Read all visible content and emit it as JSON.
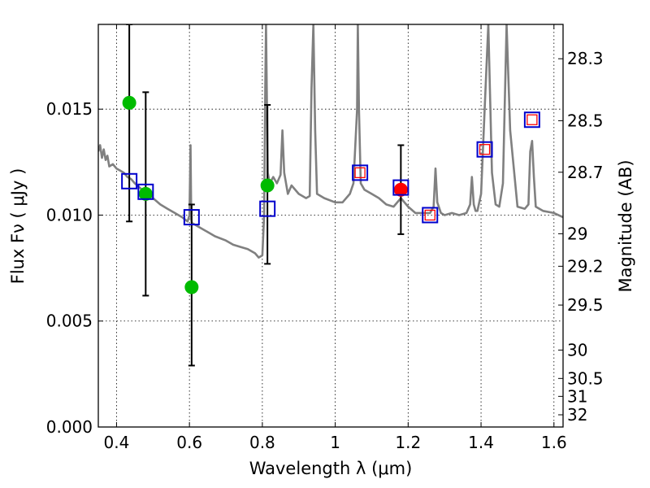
{
  "chart_data": {
    "type": "scatter",
    "title": "",
    "xlabel": "Wavelength  λ (μm)",
    "ylabel": "Flux  Fν  ( μJy )",
    "ylabel_right": "Magnitude (AB)",
    "xlim": [
      0.35,
      1.625
    ],
    "ylim": [
      0.0,
      0.019
    ],
    "grid": true,
    "x_ticks": [
      {
        "value": 0.4,
        "label": "0.4"
      },
      {
        "value": 0.6,
        "label": "0.6"
      },
      {
        "value": 0.8,
        "label": "0.8"
      },
      {
        "value": 1.0,
        "label": "1"
      },
      {
        "value": 1.2,
        "label": "1.2"
      },
      {
        "value": 1.4,
        "label": "1.4"
      },
      {
        "value": 1.6,
        "label": "1.6"
      }
    ],
    "y_ticks": [
      {
        "value": 0.0,
        "label": "0.000"
      },
      {
        "value": 0.005,
        "label": "0.005"
      },
      {
        "value": 0.01,
        "label": "0.010"
      },
      {
        "value": 0.015,
        "label": "0.015"
      }
    ],
    "mag_ticks": [
      {
        "value": 28.3,
        "label": "28.3"
      },
      {
        "value": 28.5,
        "label": "28.5"
      },
      {
        "value": 28.7,
        "label": "28.7"
      },
      {
        "value": 29.0,
        "label": "29"
      },
      {
        "value": 29.2,
        "label": "29.2"
      },
      {
        "value": 29.5,
        "label": "29.5"
      },
      {
        "value": 30.0,
        "label": "30"
      },
      {
        "value": 30.5,
        "label": "30.5"
      },
      {
        "value": 31.0,
        "label": "31"
      },
      {
        "value": 32.0,
        "label": "32"
      }
    ],
    "colors": {
      "model": "#808080",
      "detections": "#00bb00",
      "highlight": "#ff0000",
      "model_flux_box": "#0000cc",
      "model_flux_inner": "#ff0000",
      "errorbar": "#000000",
      "grid": "#000000"
    },
    "series": [
      {
        "name": "model SED",
        "kind": "line",
        "x": [
          0.35,
          0.355,
          0.36,
          0.365,
          0.37,
          0.375,
          0.38,
          0.39,
          0.4,
          0.41,
          0.42,
          0.43,
          0.44,
          0.45,
          0.47,
          0.49,
          0.5,
          0.52,
          0.54,
          0.56,
          0.58,
          0.595,
          0.6,
          0.603,
          0.605,
          0.607,
          0.61,
          0.63,
          0.65,
          0.67,
          0.7,
          0.72,
          0.74,
          0.76,
          0.78,
          0.79,
          0.8,
          0.805,
          0.808,
          0.81,
          0.812,
          0.815,
          0.82,
          0.83,
          0.84,
          0.85,
          0.855,
          0.86,
          0.87,
          0.88,
          0.9,
          0.92,
          0.93,
          0.935,
          0.94,
          0.945,
          0.95,
          0.97,
          1.0,
          1.02,
          1.04,
          1.05,
          1.06,
          1.062,
          1.065,
          1.07,
          1.08,
          1.1,
          1.12,
          1.14,
          1.16,
          1.18,
          1.2,
          1.22,
          1.24,
          1.26,
          1.27,
          1.275,
          1.28,
          1.29,
          1.3,
          1.32,
          1.34,
          1.36,
          1.37,
          1.375,
          1.38,
          1.385,
          1.39,
          1.4,
          1.41,
          1.42,
          1.43,
          1.44,
          1.45,
          1.46,
          1.47,
          1.48,
          1.5,
          1.52,
          1.53,
          1.535,
          1.54,
          1.545,
          1.55,
          1.57,
          1.6,
          1.625
        ],
        "y": [
          0.013,
          0.0133,
          0.0127,
          0.0131,
          0.0126,
          0.0128,
          0.0123,
          0.0124,
          0.0122,
          0.0121,
          0.012,
          0.0118,
          0.0117,
          0.0115,
          0.0112,
          0.011,
          0.0108,
          0.0105,
          0.0103,
          0.0101,
          0.0099,
          0.0097,
          0.01,
          0.0133,
          0.0098,
          0.0096,
          0.0096,
          0.0094,
          0.0092,
          0.009,
          0.0088,
          0.0086,
          0.0085,
          0.0084,
          0.0082,
          0.008,
          0.0081,
          0.01,
          0.016,
          0.019,
          0.016,
          0.012,
          0.0115,
          0.0118,
          0.0115,
          0.0119,
          0.014,
          0.012,
          0.011,
          0.0114,
          0.011,
          0.0108,
          0.0109,
          0.016,
          0.019,
          0.014,
          0.011,
          0.0108,
          0.0106,
          0.0106,
          0.011,
          0.0115,
          0.015,
          0.019,
          0.015,
          0.0115,
          0.0112,
          0.011,
          0.0108,
          0.0105,
          0.0104,
          0.0108,
          0.0104,
          0.0101,
          0.0101,
          0.0101,
          0.0104,
          0.0122,
          0.0106,
          0.0101,
          0.01,
          0.0101,
          0.01,
          0.0101,
          0.0105,
          0.0118,
          0.0105,
          0.0102,
          0.0102,
          0.011,
          0.015,
          0.019,
          0.012,
          0.0105,
          0.0104,
          0.0115,
          0.019,
          0.014,
          0.0104,
          0.0103,
          0.0105,
          0.013,
          0.0135,
          0.0118,
          0.0104,
          0.0102,
          0.0101,
          0.0099
        ]
      },
      {
        "name": "observed photometry",
        "kind": "errorbar",
        "x": [
          0.435,
          0.48,
          0.606,
          0.814
        ],
        "y": [
          0.0153,
          0.011,
          0.0066,
          0.0114
        ],
        "y_err_low": [
          0.0097,
          0.0062,
          0.0029,
          0.0077
        ],
        "y_err_high": [
          0.019,
          0.0158,
          0.0105,
          0.0152
        ]
      },
      {
        "name": "highlighted band",
        "kind": "errorbar",
        "x": [
          1.18
        ],
        "y": [
          0.0112
        ],
        "y_err_low": [
          0.0091
        ],
        "y_err_high": [
          0.0133
        ]
      },
      {
        "name": "model band flux",
        "kind": "box",
        "x": [
          0.435,
          0.48,
          0.606,
          0.814,
          1.068,
          1.18,
          1.26,
          1.41,
          1.54
        ],
        "y": [
          0.0116,
          0.0111,
          0.0099,
          0.0103,
          0.012,
          0.0113,
          0.01,
          0.0131,
          0.0145
        ],
        "inner_square": [
          false,
          false,
          false,
          false,
          true,
          false,
          true,
          true,
          true
        ]
      }
    ]
  }
}
